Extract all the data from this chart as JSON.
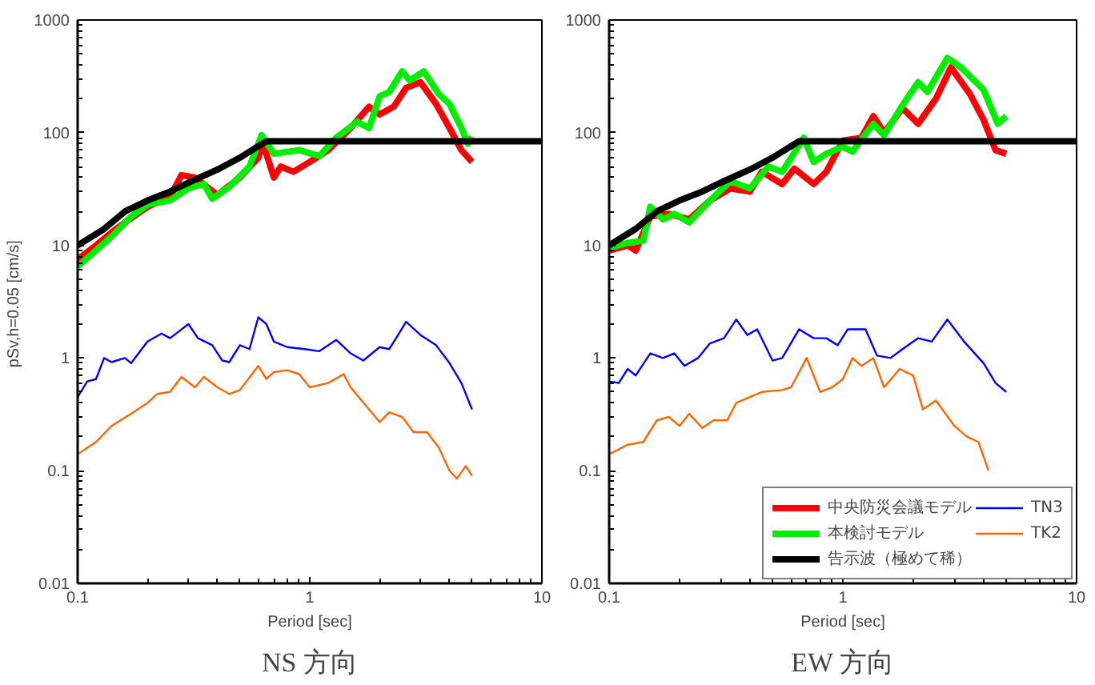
{
  "chart_data": [
    {
      "type": "line",
      "title": "NS 方向",
      "xlabel": "Period [sec]",
      "ylabel": "pSv,h=0.05  [cm/s]",
      "log": "xy",
      "xlim": [
        0.1,
        10
      ],
      "ylim": [
        0.01,
        1000
      ],
      "xticks": [
        0.1,
        1,
        10
      ],
      "yticks": [
        0.01,
        0.1,
        1,
        10,
        100,
        1000
      ],
      "grid": false,
      "legend": false,
      "series": [
        {
          "color": "#ff0000",
          "x": [
            0.1,
            0.12,
            0.14,
            0.16,
            0.2,
            0.25,
            0.28,
            0.32,
            0.4,
            0.5,
            0.6,
            0.63,
            0.7,
            0.75,
            0.85,
            1,
            1.2,
            1.5,
            1.8,
            2,
            2.3,
            2.6,
            3,
            3.5,
            4,
            4.5,
            5
          ],
          "values": [
            7.5,
            10,
            13,
            16,
            22,
            27,
            42,
            40,
            28,
            40,
            60,
            80,
            40,
            50,
            45,
            55,
            70,
            110,
            170,
            145,
            170,
            250,
            280,
            180,
            110,
            70,
            55
          ]
        },
        {
          "color": "#00ee00",
          "x": [
            0.1,
            0.12,
            0.14,
            0.17,
            0.2,
            0.25,
            0.3,
            0.35,
            0.38,
            0.45,
            0.55,
            0.62,
            0.7,
            0.9,
            1.1,
            1.3,
            1.6,
            1.8,
            2,
            2.2,
            2.5,
            2.7,
            3.1,
            3.6,
            4,
            4.5,
            4.8,
            5
          ],
          "values": [
            6.5,
            9,
            12,
            18,
            23,
            25,
            32,
            35,
            26,
            33,
            50,
            95,
            65,
            70,
            62,
            90,
            125,
            110,
            210,
            230,
            350,
            290,
            350,
            220,
            180,
            110,
            80,
            92
          ]
        },
        {
          "color": "#000000",
          "x": [
            0.1,
            0.13,
            0.16,
            0.2,
            0.25,
            0.3,
            0.4,
            0.5,
            0.65,
            10
          ],
          "values": [
            10,
            14,
            20,
            25,
            30,
            36,
            47,
            60,
            84,
            84
          ]
        },
        {
          "color": "#0000ff",
          "x": [
            0.1,
            0.11,
            0.12,
            0.13,
            0.14,
            0.16,
            0.17,
            0.2,
            0.23,
            0.25,
            0.3,
            0.33,
            0.38,
            0.42,
            0.45,
            0.5,
            0.55,
            0.6,
            0.65,
            0.7,
            0.8,
            0.95,
            1.1,
            1.3,
            1.5,
            1.7,
            2,
            2.2,
            2.4,
            2.6,
            3,
            3.5,
            4,
            4.5,
            5
          ],
          "values": [
            0.45,
            0.62,
            0.65,
            1.0,
            0.92,
            1.0,
            0.9,
            1.4,
            1.65,
            1.5,
            2.0,
            1.5,
            1.3,
            0.95,
            0.92,
            1.3,
            1.2,
            2.3,
            2.0,
            1.4,
            1.25,
            1.2,
            1.15,
            1.45,
            1.1,
            0.95,
            1.25,
            1.2,
            1.6,
            2.1,
            1.6,
            1.3,
            0.9,
            0.6,
            0.35
          ]
        },
        {
          "color": "#ff6600",
          "x": [
            0.1,
            0.12,
            0.14,
            0.17,
            0.2,
            0.22,
            0.25,
            0.28,
            0.32,
            0.35,
            0.4,
            0.45,
            0.5,
            0.6,
            0.65,
            0.7,
            0.8,
            0.9,
            1.0,
            1.2,
            1.4,
            1.5,
            1.8,
            2,
            2.2,
            2.5,
            2.8,
            3.2,
            3.6,
            4,
            4.3,
            4.7,
            5
          ],
          "values": [
            0.14,
            0.18,
            0.25,
            0.32,
            0.4,
            0.48,
            0.5,
            0.68,
            0.55,
            0.68,
            0.55,
            0.48,
            0.52,
            0.85,
            0.65,
            0.75,
            0.78,
            0.72,
            0.55,
            0.6,
            0.72,
            0.55,
            0.35,
            0.27,
            0.33,
            0.3,
            0.22,
            0.22,
            0.16,
            0.1,
            0.085,
            0.11,
            0.09
          ]
        }
      ]
    },
    {
      "type": "line",
      "title": "EW 方向",
      "xlabel": "Period [sec]",
      "log": "xy",
      "xlim": [
        0.1,
        10
      ],
      "ylim": [
        0.01,
        1000
      ],
      "xticks": [
        0.1,
        1,
        10
      ],
      "yticks": [
        0.01,
        0.1,
        1,
        10,
        100,
        1000
      ],
      "grid": false,
      "legend": "bottom right",
      "series": [
        {
          "name": "中央防災会議モデル",
          "color": "#ff0000",
          "x": [
            0.1,
            0.12,
            0.13,
            0.15,
            0.18,
            0.22,
            0.27,
            0.33,
            0.4,
            0.45,
            0.55,
            0.62,
            0.75,
            0.85,
            1.0,
            1.2,
            1.35,
            1.5,
            1.8,
            2.1,
            2.5,
            2.9,
            3.5,
            4,
            4.5,
            5
          ],
          "values": [
            9,
            10,
            9,
            18,
            19,
            17,
            25,
            32,
            30,
            45,
            35,
            48,
            35,
            45,
            85,
            90,
            140,
            100,
            165,
            120,
            200,
            380,
            220,
            130,
            70,
            65
          ]
        },
        {
          "name": "本検討モデル",
          "color": "#00ee00",
          "x": [
            0.1,
            0.12,
            0.14,
            0.15,
            0.17,
            0.19,
            0.22,
            0.27,
            0.33,
            0.4,
            0.48,
            0.55,
            0.68,
            0.75,
            0.85,
            1,
            1.1,
            1.35,
            1.5,
            1.8,
            2.1,
            2.3,
            2.8,
            3.2,
            4,
            4.6,
            5
          ],
          "values": [
            9.5,
            10.5,
            11,
            22,
            17,
            19,
            16,
            25,
            37,
            32,
            50,
            45,
            90,
            55,
            65,
            75,
            68,
            120,
            95,
            175,
            280,
            230,
            460,
            380,
            240,
            120,
            140
          ]
        },
        {
          "name": "告示波（極めて稀）",
          "color": "#000000",
          "x": [
            0.1,
            0.13,
            0.16,
            0.2,
            0.25,
            0.3,
            0.4,
            0.5,
            0.65,
            10
          ],
          "values": [
            10,
            14,
            20,
            25,
            30,
            36,
            47,
            60,
            84,
            84
          ]
        },
        {
          "name": "TN3",
          "color": "#0000ff",
          "x": [
            0.1,
            0.11,
            0.12,
            0.13,
            0.15,
            0.17,
            0.19,
            0.21,
            0.24,
            0.27,
            0.31,
            0.35,
            0.39,
            0.43,
            0.5,
            0.55,
            0.65,
            0.75,
            0.85,
            0.95,
            1.05,
            1.25,
            1.4,
            1.6,
            1.8,
            2.1,
            2.4,
            2.8,
            3.3,
            4,
            4.5,
            5
          ],
          "values": [
            0.62,
            0.6,
            0.8,
            0.7,
            1.1,
            1.0,
            1.1,
            0.85,
            1.0,
            1.35,
            1.5,
            2.2,
            1.6,
            1.8,
            0.95,
            1.0,
            1.8,
            1.5,
            1.5,
            1.3,
            1.8,
            1.8,
            1.05,
            1.0,
            1.2,
            1.5,
            1.4,
            2.2,
            1.4,
            0.9,
            0.6,
            0.5
          ]
        },
        {
          "name": "TK2",
          "color": "#ff6600",
          "x": [
            0.1,
            0.12,
            0.14,
            0.16,
            0.18,
            0.2,
            0.22,
            0.25,
            0.28,
            0.32,
            0.35,
            0.4,
            0.45,
            0.55,
            0.6,
            0.7,
            0.8,
            0.9,
            1.0,
            1.1,
            1.2,
            1.35,
            1.5,
            1.75,
            2,
            2.2,
            2.5,
            3,
            3.4,
            3.8,
            4.2
          ],
          "values": [
            0.14,
            0.17,
            0.18,
            0.28,
            0.3,
            0.25,
            0.32,
            0.24,
            0.28,
            0.28,
            0.4,
            0.45,
            0.5,
            0.52,
            0.55,
            1.0,
            0.5,
            0.55,
            0.65,
            1.0,
            0.85,
            1.0,
            0.55,
            0.8,
            0.7,
            0.35,
            0.42,
            0.25,
            0.2,
            0.18,
            0.1
          ]
        }
      ]
    }
  ]
}
